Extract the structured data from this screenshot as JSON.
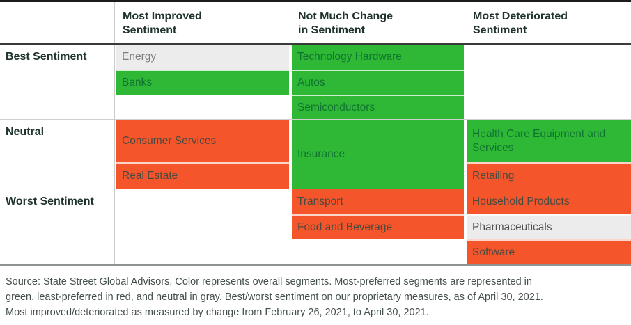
{
  "table": {
    "col_headers_display": [
      "Most Improved\nSentiment",
      "Not Much Change\nin Sentiment",
      "Most Deteriorated\nSentiment"
    ],
    "row_headers": [
      "Best Sentiment",
      "Neutral",
      "Worst Sentiment"
    ]
  },
  "chart_data": {
    "type": "table",
    "title": "",
    "columns": [
      "Most Improved Sentiment",
      "Not Much Change in Sentiment",
      "Most Deteriorated Sentiment"
    ],
    "rows": [
      "Best Sentiment",
      "Neutral",
      "Worst Sentiment"
    ],
    "legend": {
      "green": "most-preferred",
      "red": "least-preferred",
      "gray": "neutral"
    },
    "cells": [
      {
        "segment": "Energy",
        "row": "Best Sentiment",
        "column": "Most Improved Sentiment",
        "color": "gray"
      },
      {
        "segment": "Banks",
        "row": "Best Sentiment",
        "column": "Most Improved Sentiment",
        "color": "green"
      },
      {
        "segment": "Technology Hardware",
        "row": "Best Sentiment",
        "column": "Not Much Change in Sentiment",
        "color": "green"
      },
      {
        "segment": "Autos",
        "row": "Best Sentiment",
        "column": "Not Much Change in Sentiment",
        "color": "green"
      },
      {
        "segment": "Semiconductors",
        "row": "Best Sentiment",
        "column": "Not Much Change in Sentiment",
        "color": "green"
      },
      {
        "segment": "Consumer Services",
        "row": "Neutral",
        "column": "Most Improved Sentiment",
        "color": "red"
      },
      {
        "segment": "Real Estate",
        "row": "Neutral",
        "column": "Most Improved Sentiment",
        "color": "red"
      },
      {
        "segment": "Insurance",
        "row": "Neutral",
        "column": "Not Much Change in Sentiment",
        "color": "green"
      },
      {
        "segment": "Health Care Equipment and Services",
        "row": "Neutral",
        "column": "Most Deteriorated Sentiment",
        "color": "green"
      },
      {
        "segment": "Retailing",
        "row": "Neutral",
        "column": "Most Deteriorated Sentiment",
        "color": "red"
      },
      {
        "segment": "Transport",
        "row": "Worst Sentiment",
        "column": "Not Much Change in Sentiment",
        "color": "red"
      },
      {
        "segment": "Food and Beverage",
        "row": "Worst Sentiment",
        "column": "Not Much Change in Sentiment",
        "color": "red"
      },
      {
        "segment": "Household Products",
        "row": "Worst Sentiment",
        "column": "Most Deteriorated Sentiment",
        "color": "red"
      },
      {
        "segment": "Pharmaceuticals",
        "row": "Worst Sentiment",
        "column": "Most Deteriorated Sentiment",
        "color": "gray"
      },
      {
        "segment": "Software",
        "row": "Worst Sentiment",
        "column": "Most Deteriorated Sentiment",
        "color": "red"
      }
    ]
  },
  "colors": {
    "green": "#2eb835",
    "red": "#f4552a",
    "gray": "#ececec",
    "green_text": "#107430",
    "red_text": "#4b4a40",
    "header_text": "#20342c",
    "top_border": "#1c1c1c",
    "header_rule": "#3a3a3a",
    "section_rule": "#cfcfcf",
    "bottom_border": "#8f9391"
  },
  "footer": {
    "source_note": "Source: State Street Global Advisors. Color represents overall segments. Most-preferred segments are represented in\ngreen, least-preferred in red, and neutral in gray. Best/worst sentiment on our proprietary measures, as of April 30, 2021.\nMost improved/deteriorated as measured by change from February 26, 2021, to April 30, 2021."
  }
}
